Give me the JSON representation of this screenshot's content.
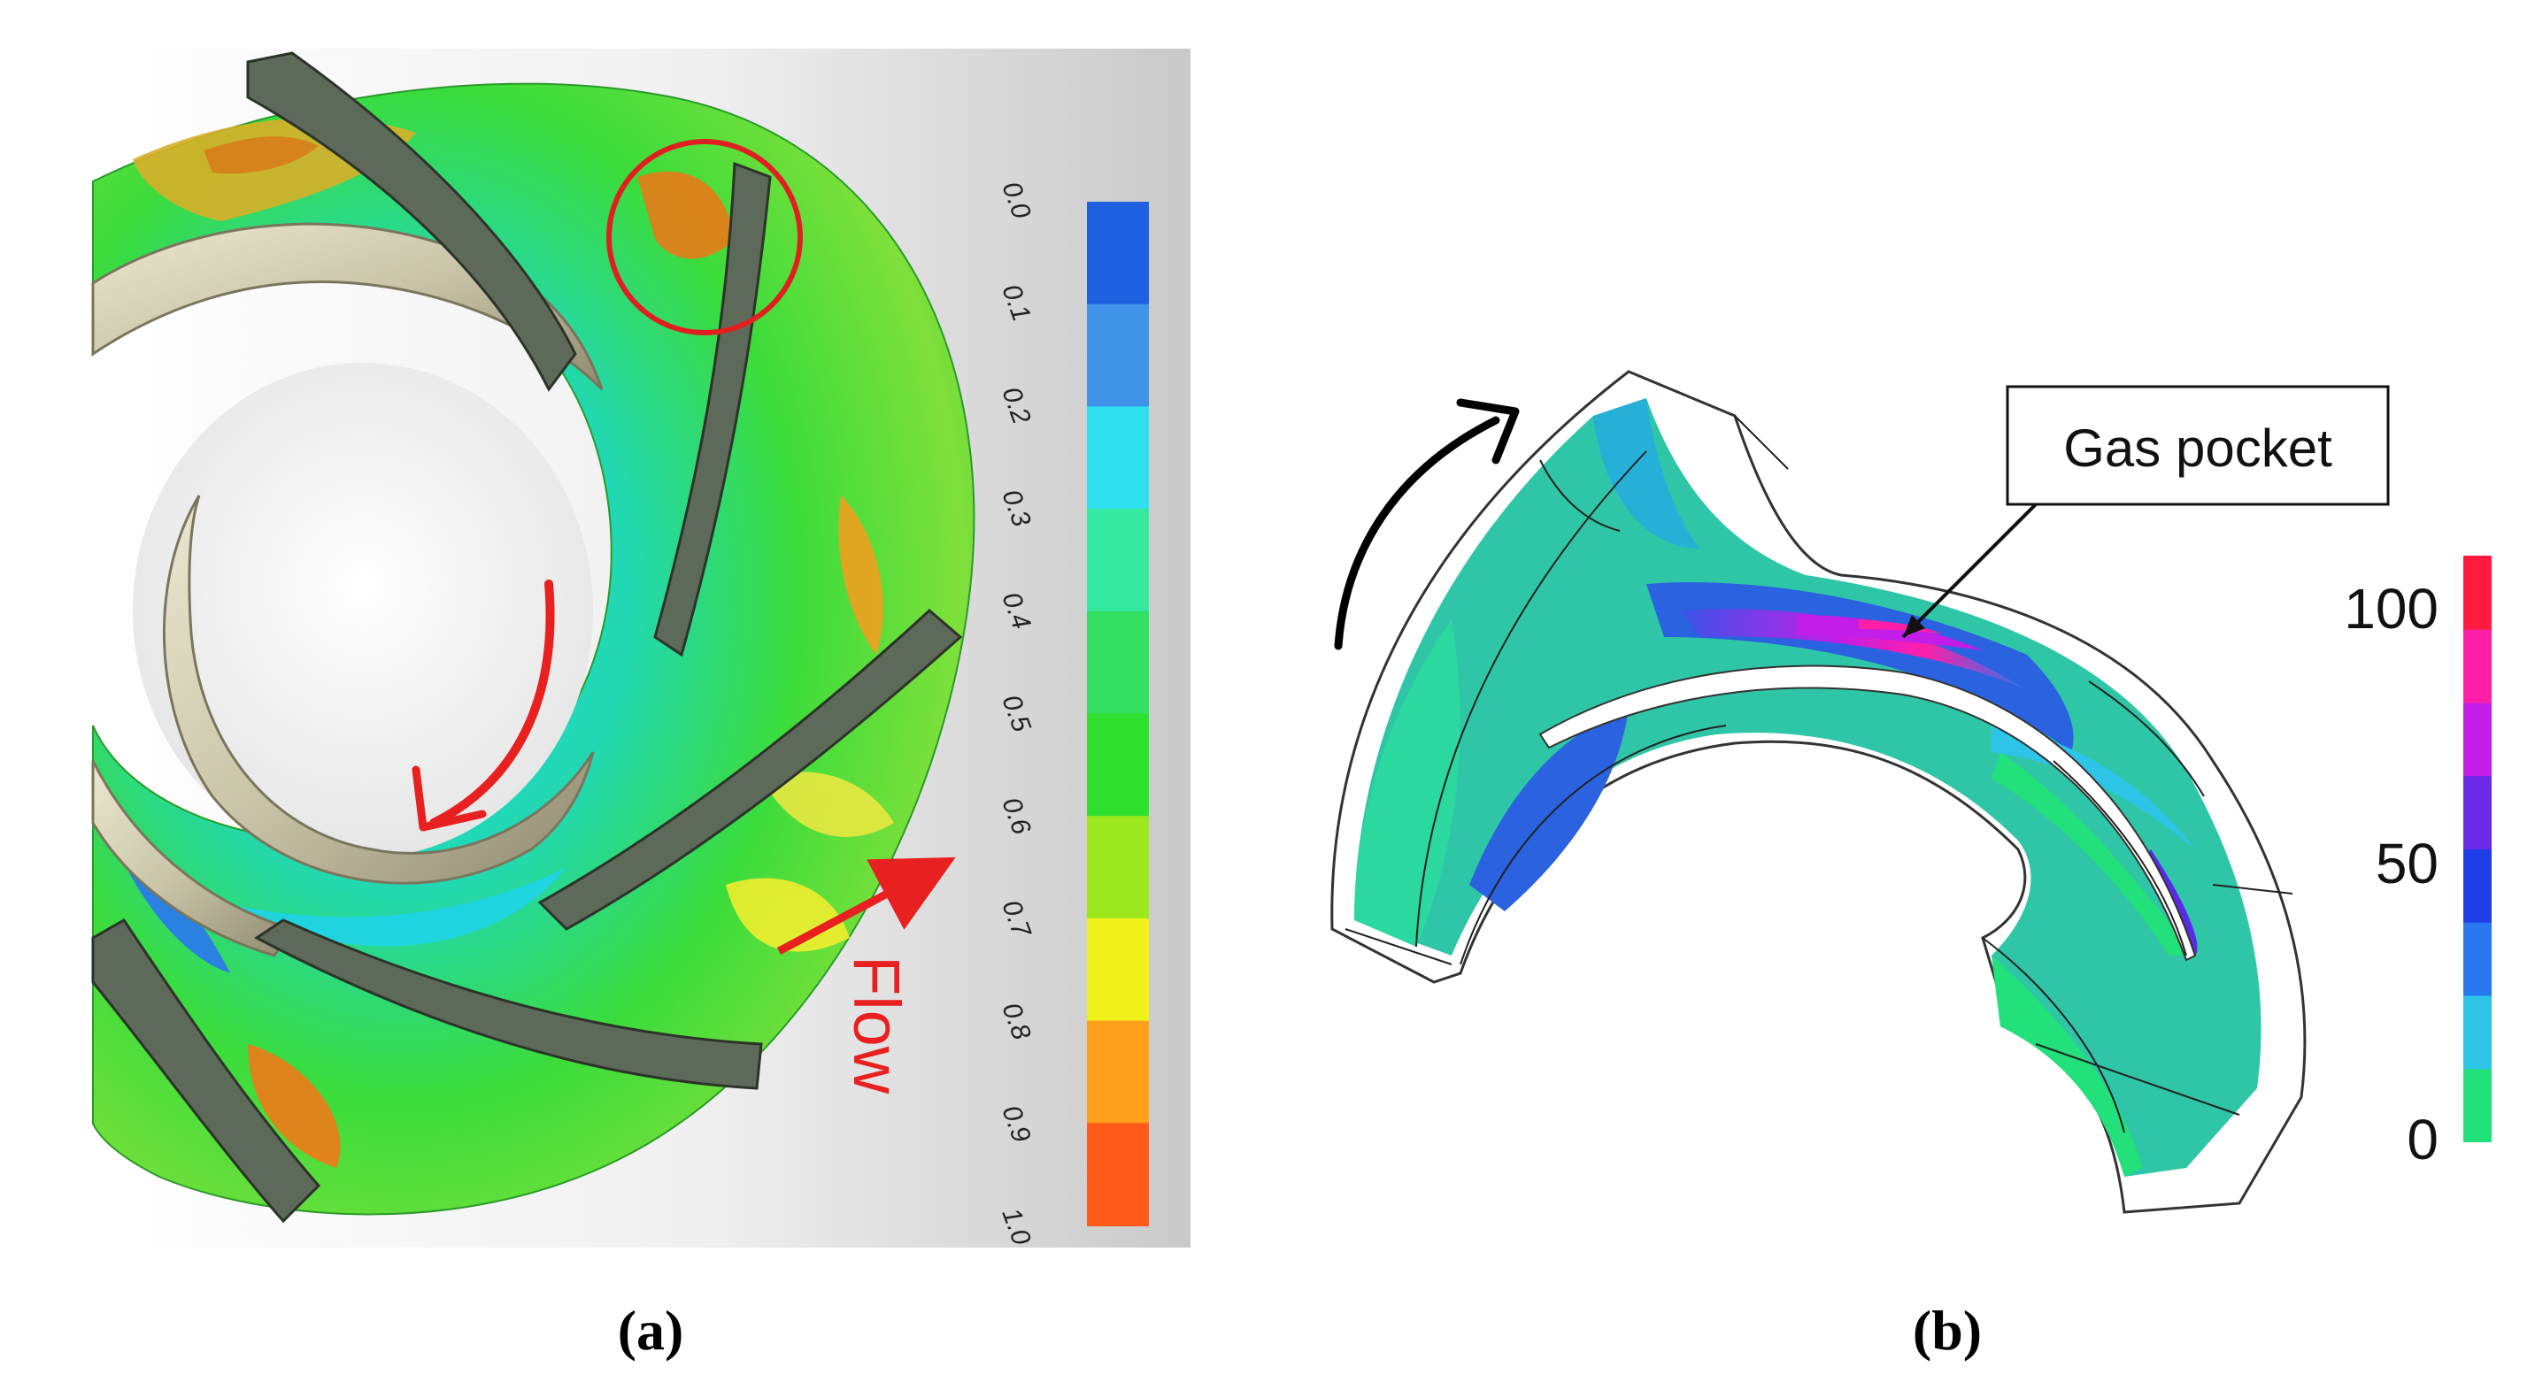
{
  "panels": {
    "a": {
      "caption": "(a)",
      "flow_label": "Flow",
      "colorbar": {
        "ticks": [
          "0.0",
          "0.1",
          "0.2",
          "0.3",
          "0.4",
          "0.5",
          "0.6",
          "0.7",
          "0.8",
          "0.9",
          "1.0"
        ],
        "colors": [
          "#1f5fe0",
          "#3f93e8",
          "#2fe0ee",
          "#35e8a0",
          "#34e062",
          "#2fe02f",
          "#9de81f",
          "#f0f01a",
          "#ffa01a",
          "#ff5a1a"
        ]
      }
    },
    "b": {
      "caption": "(b)",
      "annotation": "Gas pocket",
      "colorbar": {
        "ticks": [
          "100",
          "50",
          "0"
        ],
        "colors": [
          "#22e07a",
          "#2ec4e8",
          "#2a78f0",
          "#1f3ee8",
          "#6a2ae8",
          "#c21ee8",
          "#ff1ea8",
          "#ff1a40"
        ]
      }
    }
  },
  "colors": {
    "highlight_circle": "#e02020",
    "flow_arrow": "#e82020",
    "rotation_arrow": "#000000",
    "blade_fill": "#5d6a5a",
    "shroud_fill": "#d6d2b8",
    "background_panel_a": "#d6d6d6"
  }
}
